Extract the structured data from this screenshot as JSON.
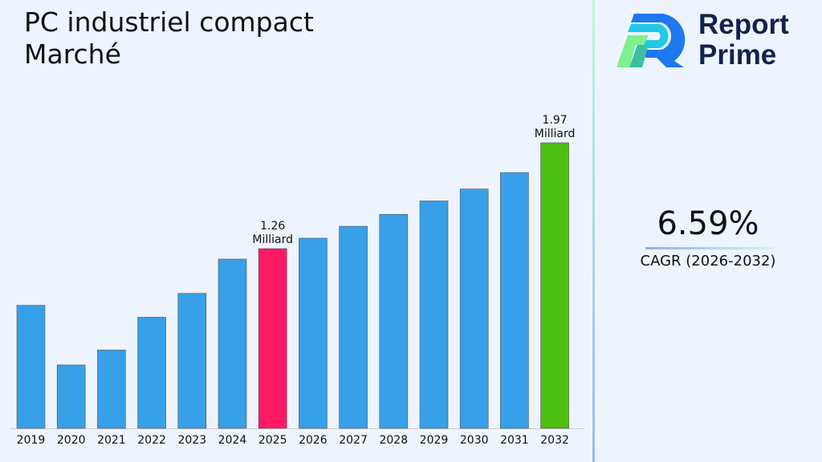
{
  "title": "PC industriel compact Marché",
  "logo": {
    "line1": "Report",
    "line2": "Prime"
  },
  "cagr": {
    "value": "6.59%",
    "label": "CAGR (2026-2032)"
  },
  "chart_data": {
    "type": "bar",
    "categories": [
      "2019",
      "2020",
      "2021",
      "2022",
      "2023",
      "2024",
      "2025",
      "2026",
      "2027",
      "2028",
      "2029",
      "2030",
      "2031",
      "2032"
    ],
    "values": [
      0.88,
      0.48,
      0.58,
      0.8,
      0.96,
      1.19,
      1.26,
      1.33,
      1.41,
      1.49,
      1.58,
      1.66,
      1.77,
      1.97
    ],
    "colors": {
      "default": "#38a0e8",
      "highlight_2025": "#fc1a64",
      "highlight_2032": "#4cc010"
    },
    "annotations": [
      {
        "category": "2025",
        "value": "1.26",
        "unit": "Milliard"
      },
      {
        "category": "2032",
        "value": "1.97",
        "unit": "Milliard"
      }
    ],
    "grid": false
  }
}
